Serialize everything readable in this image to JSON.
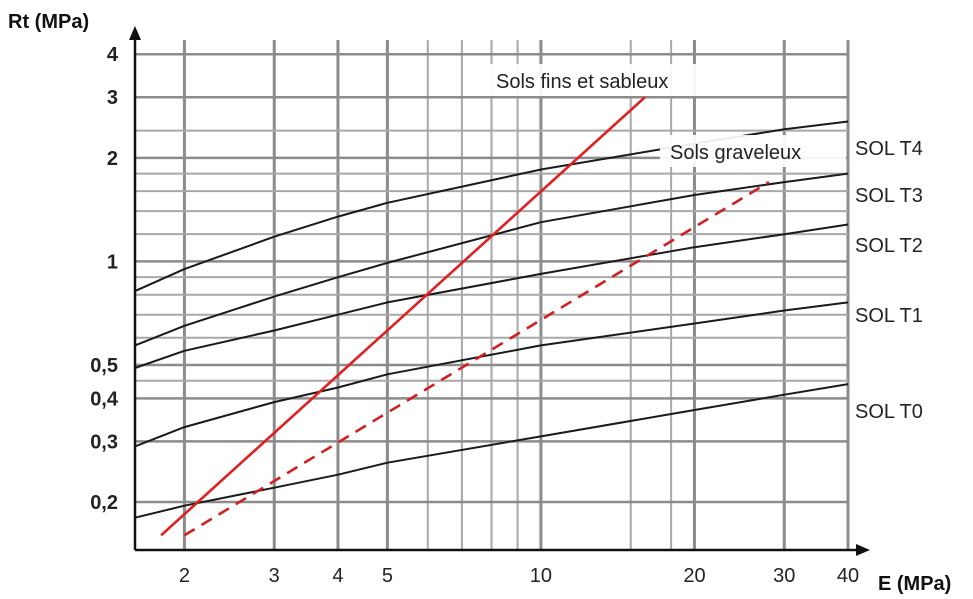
{
  "chart_data": {
    "type": "line",
    "xlabel": "E (MPa)",
    "ylabel": "Rt (MPa)",
    "x_scale": "log",
    "y_scale": "log",
    "xlim": [
      1.6,
      40
    ],
    "ylim": [
      0.145,
      4.4
    ],
    "x_ticks": [
      2,
      3,
      4,
      5,
      10,
      20,
      30,
      40
    ],
    "x_tick_labels": [
      "2",
      "3",
      "4",
      "5",
      "10",
      "20",
      "30",
      "40"
    ],
    "x_minor_gridlines": [
      2,
      3,
      4,
      5,
      6,
      7,
      8,
      9,
      10,
      15,
      18,
      20,
      30,
      40
    ],
    "y_ticks": [
      0.2,
      0.3,
      0.4,
      0.5,
      1,
      2,
      3,
      4
    ],
    "y_tick_labels": [
      "0,2",
      "0,3",
      "0,4",
      "0,5",
      "1",
      "2",
      "3",
      "4"
    ],
    "y_minor_gridlines": [
      0.2,
      0.3,
      0.4,
      0.45,
      0.5,
      0.6,
      0.7,
      0.8,
      0.9,
      1.0,
      1.2,
      1.4,
      1.6,
      1.8,
      2.0,
      2.4,
      3.0,
      4.0
    ],
    "grid": true,
    "series": [
      {
        "name": "SOL T4",
        "color": "#1a1a1a",
        "style": "solid",
        "points": [
          [
            1.6,
            0.82
          ],
          [
            2,
            0.95
          ],
          [
            3,
            1.18
          ],
          [
            4,
            1.35
          ],
          [
            5,
            1.48
          ],
          [
            10,
            1.85
          ],
          [
            20,
            2.2
          ],
          [
            30,
            2.42
          ],
          [
            40,
            2.55
          ]
        ]
      },
      {
        "name": "SOL T3",
        "color": "#1a1a1a",
        "style": "solid",
        "points": [
          [
            1.6,
            0.57
          ],
          [
            2,
            0.65
          ],
          [
            3,
            0.79
          ],
          [
            4,
            0.9
          ],
          [
            5,
            0.99
          ],
          [
            10,
            1.3
          ],
          [
            20,
            1.56
          ],
          [
            30,
            1.7
          ],
          [
            40,
            1.8
          ]
        ]
      },
      {
        "name": "SOL T2",
        "color": "#1a1a1a",
        "style": "solid",
        "points": [
          [
            1.6,
            0.49
          ],
          [
            2,
            0.55
          ],
          [
            3,
            0.63
          ],
          [
            4,
            0.7
          ],
          [
            5,
            0.76
          ],
          [
            10,
            0.92
          ],
          [
            20,
            1.1
          ],
          [
            30,
            1.2
          ],
          [
            40,
            1.28
          ]
        ]
      },
      {
        "name": "SOL T1",
        "color": "#1a1a1a",
        "style": "solid",
        "points": [
          [
            1.6,
            0.29
          ],
          [
            2,
            0.33
          ],
          [
            3,
            0.39
          ],
          [
            4,
            0.43
          ],
          [
            5,
            0.47
          ],
          [
            10,
            0.57
          ],
          [
            20,
            0.66
          ],
          [
            30,
            0.72
          ],
          [
            40,
            0.76
          ]
        ]
      },
      {
        "name": "SOL T0",
        "color": "#1a1a1a",
        "style": "solid",
        "points": [
          [
            1.6,
            0.18
          ],
          [
            2,
            0.195
          ],
          [
            3,
            0.22
          ],
          [
            4,
            0.24
          ],
          [
            5,
            0.26
          ],
          [
            10,
            0.31
          ],
          [
            20,
            0.37
          ],
          [
            30,
            0.41
          ],
          [
            40,
            0.44
          ]
        ]
      },
      {
        "name": "Sols fins et sableux",
        "color": "#e02020",
        "style": "solid",
        "points": [
          [
            1.8,
            0.16
          ],
          [
            16,
            3.0
          ]
        ]
      },
      {
        "name": "Sols graveleux",
        "color": "#d02020",
        "style": "dashed",
        "points": [
          [
            2,
            0.16
          ],
          [
            28,
            1.7
          ]
        ]
      }
    ],
    "class_labels": [
      "SOL T4",
      "SOL T3",
      "SOL T2",
      "SOL T1",
      "SOL T0"
    ],
    "annotations": [
      "Sols fins et sableux",
      "Sols graveleux"
    ]
  }
}
